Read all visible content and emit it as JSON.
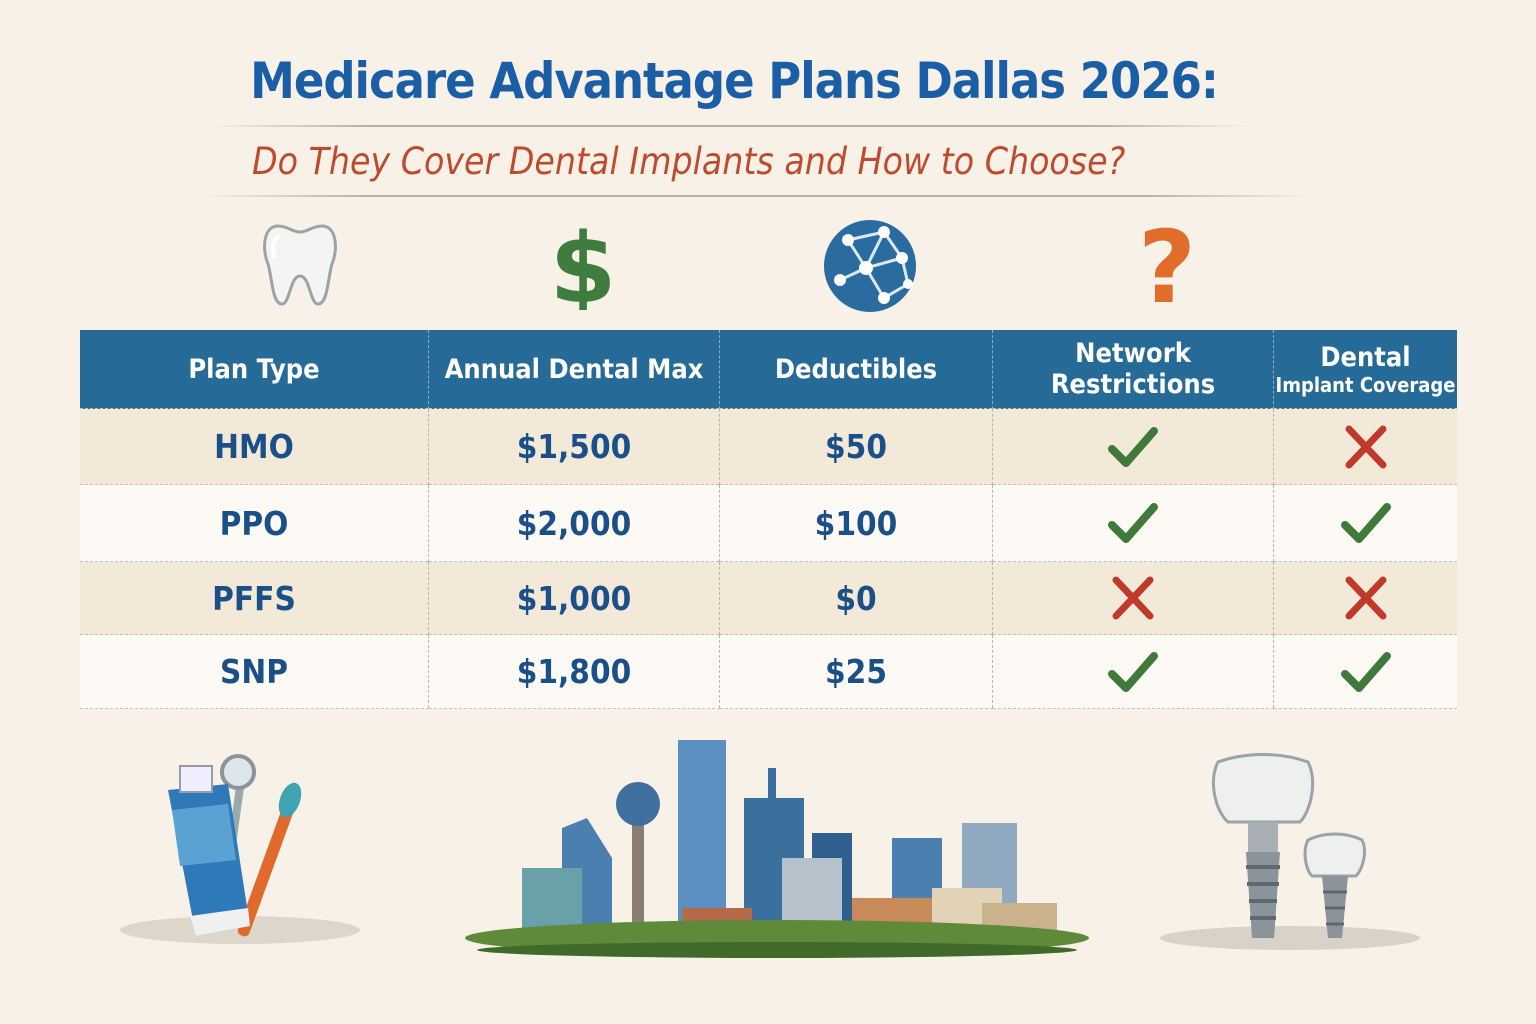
{
  "header": {
    "title": "Medicare Advantage Plans Dallas 2026:",
    "subtitle": "Do They Cover Dental Implants and How to Choose?"
  },
  "icons": [
    "tooth-icon",
    "dollar-icon",
    "network-globe-icon",
    "question-mark-icon"
  ],
  "colors": {
    "title": "#1a5ea6",
    "subtitle": "#bf4b2f",
    "header_bg": "#266a98",
    "check": "#3f7a3a",
    "cross": "#c0392b"
  },
  "table": {
    "columns": [
      {
        "label": "Plan Type"
      },
      {
        "label": "Annual Dental Max"
      },
      {
        "label": "Deductibles"
      },
      {
        "label": "Network Restrictions"
      },
      {
        "label": "Dental",
        "sublabel": "Implant Coverage"
      }
    ],
    "rows": [
      {
        "plan": "HMO",
        "annual_max": "$1,500",
        "deductible": "$50",
        "network_restrictions": true,
        "implant_coverage": false
      },
      {
        "plan": "PPO",
        "annual_max": "$2,000",
        "deductible": "$100",
        "network_restrictions": true,
        "implant_coverage": true
      },
      {
        "plan": "PFFS",
        "annual_max": "$1,000",
        "deductible": "$0",
        "network_restrictions": false,
        "implant_coverage": false
      },
      {
        "plan": "SNP",
        "annual_max": "$1,800",
        "deductible": "$25",
        "network_restrictions": true,
        "implant_coverage": true
      }
    ]
  },
  "illustrations": [
    "toothpaste-and-dental-tools",
    "dallas-skyline",
    "dental-implants"
  ]
}
